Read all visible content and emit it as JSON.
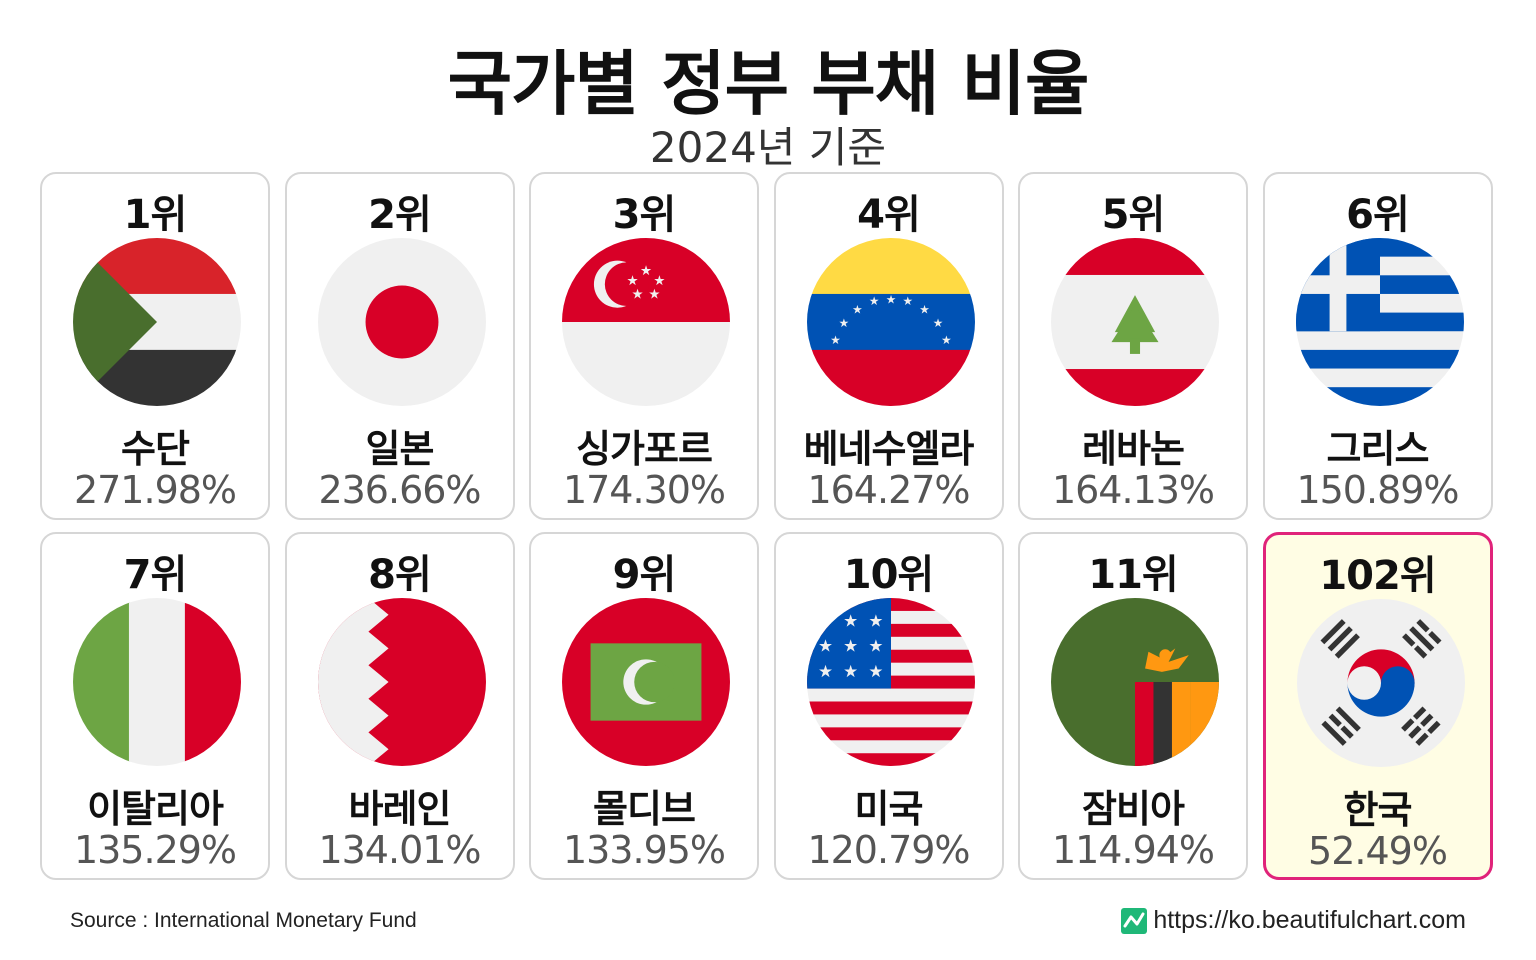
{
  "header": {
    "title": "국가별 정부 부채 비율",
    "subtitle": "2024년 기준"
  },
  "cards": [
    {
      "rank": "1위",
      "country": "수단",
      "value": "271.98%",
      "flag": "sudan-flag"
    },
    {
      "rank": "2위",
      "country": "일본",
      "value": "236.66%",
      "flag": "japan-flag"
    },
    {
      "rank": "3위",
      "country": "싱가포르",
      "value": "174.30%",
      "flag": "singapore-flag"
    },
    {
      "rank": "4위",
      "country": "베네수엘라",
      "value": "164.27%",
      "flag": "venezuela-flag"
    },
    {
      "rank": "5위",
      "country": "레바논",
      "value": "164.13%",
      "flag": "lebanon-flag"
    },
    {
      "rank": "6위",
      "country": "그리스",
      "value": "150.89%",
      "flag": "greece-flag"
    },
    {
      "rank": "7위",
      "country": "이탈리아",
      "value": "135.29%",
      "flag": "italy-flag"
    },
    {
      "rank": "8위",
      "country": "바레인",
      "value": "134.01%",
      "flag": "bahrain-flag"
    },
    {
      "rank": "9위",
      "country": "몰디브",
      "value": "133.95%",
      "flag": "maldives-flag"
    },
    {
      "rank": "10위",
      "country": "미국",
      "value": "120.79%",
      "flag": "usa-flag"
    },
    {
      "rank": "11위",
      "country": "잠비아",
      "value": "114.94%",
      "flag": "zambia-flag"
    },
    {
      "rank": "102위",
      "country": "한국",
      "value": "52.49%",
      "flag": "south-korea-flag",
      "highlight": true
    }
  ],
  "footer": {
    "source": "Source : International Monetary Fund",
    "site": "https://ko.beautifulchart.com",
    "site_icon": "chart-line-icon"
  },
  "colors": {
    "highlight_border": "#e0237a",
    "highlight_bg": "#fffde4",
    "card_border": "#d6d6d6",
    "logo_green": "#1fb878"
  }
}
